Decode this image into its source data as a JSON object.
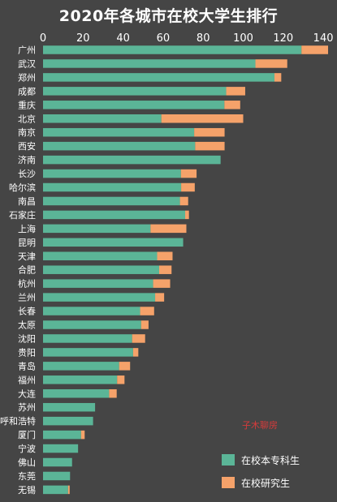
{
  "title": "2020年各城市在校大学生排行",
  "watermark": "子木聊房",
  "colors": {
    "background": "#454545",
    "undergrad": "#5bb597",
    "postgrad": "#f5a26a",
    "text": "#ffffff",
    "watermark": "#d63b3b"
  },
  "chart_data": {
    "type": "bar",
    "orientation": "horizontal",
    "stacked": true,
    "title": "2020年各城市在校大学生排行",
    "xlabel": "",
    "ylabel": "",
    "xlim": [
      0,
      140
    ],
    "ticks": [
      0,
      20,
      40,
      60,
      80,
      100,
      120,
      140
    ],
    "legend_position": "bottom-right",
    "categories": [
      "广州",
      "武汉",
      "郑州",
      "成都",
      "重庆",
      "北京",
      "南京",
      "西安",
      "济南",
      "长沙",
      "哈尔滨",
      "南昌",
      "石家庄",
      "上海",
      "昆明",
      "天津",
      "合肥",
      "杭州",
      "兰州",
      "长春",
      "太原",
      "沈阳",
      "贵阳",
      "青岛",
      "福州",
      "大连",
      "苏州",
      "呼和浩特",
      "厦门",
      "宁波",
      "佛山",
      "东莞",
      "无锡"
    ],
    "series": [
      {
        "name": "在校本专科生",
        "color": "#5bb597",
        "values": [
          129.1,
          106.1,
          115.6,
          91.5,
          90.6,
          59.1,
          75.5,
          76.0,
          88.7,
          68.9,
          69.0,
          68.4,
          71.0,
          53.7,
          70.0,
          57.0,
          58.0,
          55.0,
          56.0,
          48.5,
          49.0,
          44.5,
          45.0,
          38.0,
          37.0,
          33.0,
          26.0,
          25.0,
          19.0,
          17.5,
          14.5,
          13.5,
          12.5
        ]
      },
      {
        "name": "在校研究生",
        "color": "#f5a26a",
        "values": [
          13.3,
          15.9,
          3.4,
          9.5,
          7.9,
          40.9,
          15.2,
          14.7,
          0.0,
          7.8,
          6.8,
          4.1,
          1.9,
          17.9,
          0.0,
          7.7,
          6.2,
          8.5,
          4.5,
          7.0,
          3.7,
          6.5,
          2.6,
          5.5,
          3.7,
          3.8,
          0.0,
          0.0,
          1.8,
          0.0,
          0.0,
          0.0,
          0.8
        ]
      }
    ]
  }
}
